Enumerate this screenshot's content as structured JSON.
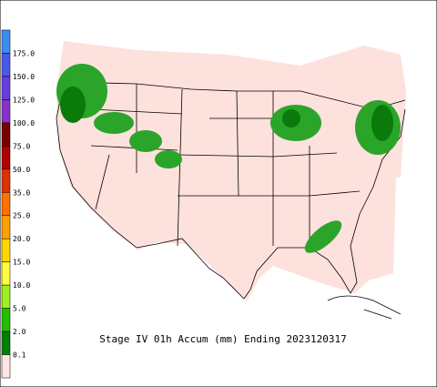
{
  "title": "Stage IV 01h Accum (mm) Ending 2023120317",
  "legend": {
    "labels": [
      "175.0",
      "150.0",
      "125.0",
      "100.0",
      "75.0",
      "50.0",
      "35.0",
      "25.0",
      "20.0",
      "15.0",
      "10.0",
      "5.0",
      "2.0",
      "0.1"
    ],
    "colors": [
      "#3c8cf0",
      "#4a5ae6",
      "#6a3ce0",
      "#8a30c8",
      "#7a0000",
      "#b00000",
      "#e03000",
      "#ff7000",
      "#ffa000",
      "#ffd800",
      "#ffff40",
      "#a0f020",
      "#20c000",
      "#008000",
      "#ffe4e1"
    ]
  }
}
